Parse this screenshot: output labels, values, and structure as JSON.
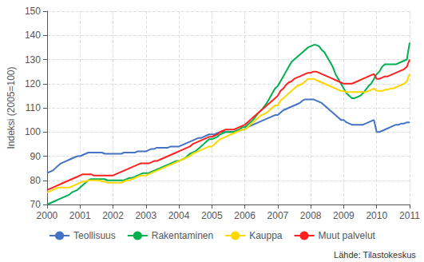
{
  "chart_data": {
    "type": "line",
    "ylabel": "Indeksi (2005=100)",
    "annotation": "Lähde: Tilastokeskus",
    "xlim": [
      2000,
      2011
    ],
    "xticks": [
      2000,
      2001,
      2002,
      2003,
      2004,
      2005,
      2006,
      2007,
      2008,
      2009,
      2010,
      2011
    ],
    "ylim": [
      70,
      150
    ],
    "yticks": [
      70,
      80,
      90,
      100,
      110,
      120,
      130,
      140,
      150
    ],
    "grid": true,
    "legend": "bottom",
    "x": [
      2000.0,
      2000.083,
      2000.167,
      2000.25,
      2000.333,
      2000.417,
      2000.5,
      2000.583,
      2000.667,
      2000.75,
      2000.833,
      2000.917,
      2001.0,
      2001.083,
      2001.167,
      2001.25,
      2001.333,
      2001.417,
      2001.5,
      2001.583,
      2001.667,
      2001.75,
      2001.833,
      2001.917,
      2002.0,
      2002.083,
      2002.167,
      2002.25,
      2002.333,
      2002.417,
      2002.5,
      2002.583,
      2002.667,
      2002.75,
      2002.833,
      2002.917,
      2003.0,
      2003.083,
      2003.167,
      2003.25,
      2003.333,
      2003.417,
      2003.5,
      2003.583,
      2003.667,
      2003.75,
      2003.833,
      2003.917,
      2004.0,
      2004.083,
      2004.167,
      2004.25,
      2004.333,
      2004.417,
      2004.5,
      2004.583,
      2004.667,
      2004.75,
      2004.833,
      2004.917,
      2005.0,
      2005.083,
      2005.167,
      2005.25,
      2005.333,
      2005.417,
      2005.5,
      2005.583,
      2005.667,
      2005.75,
      2005.833,
      2005.917,
      2006.0,
      2006.083,
      2006.167,
      2006.25,
      2006.333,
      2006.417,
      2006.5,
      2006.583,
      2006.667,
      2006.75,
      2006.833,
      2006.917,
      2007.0,
      2007.083,
      2007.167,
      2007.25,
      2007.333,
      2007.417,
      2007.5,
      2007.583,
      2007.667,
      2007.75,
      2007.833,
      2007.917,
      2008.0,
      2008.083,
      2008.167,
      2008.25,
      2008.333,
      2008.417,
      2008.5,
      2008.583,
      2008.667,
      2008.75,
      2008.833,
      2008.917,
      2009.0,
      2009.083,
      2009.167,
      2009.25,
      2009.333,
      2009.417,
      2009.5,
      2009.583,
      2009.667,
      2009.75,
      2009.833,
      2009.917,
      2010.0,
      2010.083,
      2010.167,
      2010.25,
      2010.333,
      2010.417,
      2010.5,
      2010.583,
      2010.667,
      2010.75,
      2010.833,
      2010.917,
      2011.0
    ],
    "series": [
      {
        "name": "Teollisuus",
        "color": "#4472c4",
        "values": [
          83,
          83.5,
          84,
          85,
          86,
          87,
          87.5,
          88,
          88.5,
          89,
          89.5,
          90,
          90,
          90.5,
          91,
          91.5,
          91.5,
          91.5,
          91.5,
          91.5,
          91.5,
          91,
          91,
          91,
          91,
          91,
          91,
          91,
          91.5,
          91.5,
          91.5,
          91.5,
          91.5,
          92,
          92,
          92,
          92,
          92.5,
          93,
          93,
          93.5,
          93.5,
          93.5,
          93.5,
          93.5,
          94,
          94,
          94,
          94,
          94.5,
          95,
          95.5,
          96,
          96.5,
          97,
          97.5,
          97.5,
          98,
          98.5,
          99,
          99,
          99,
          99.5,
          100,
          100,
          100,
          100,
          100,
          100,
          100.5,
          101,
          101,
          101,
          102,
          102.5,
          103,
          103.5,
          104,
          104.5,
          105,
          105.5,
          106,
          106.5,
          107,
          107,
          108,
          109,
          109.5,
          110,
          110.5,
          111,
          111.5,
          112,
          113,
          113.5,
          113.5,
          113.5,
          113.5,
          113,
          112.5,
          112,
          111,
          110,
          109,
          108,
          107,
          106,
          105,
          105,
          104,
          103.5,
          103,
          103,
          103,
          103,
          103,
          103.5,
          104,
          104.5,
          105,
          100,
          100,
          100.5,
          101,
          101.5,
          102,
          102.5,
          103,
          103,
          103.5,
          103.5,
          104,
          104
        ]
      },
      {
        "name": "Rakentaminen",
        "color": "#00b050",
        "values": [
          70,
          70.5,
          71,
          71.5,
          72,
          72.5,
          73,
          73.5,
          74,
          75,
          75.5,
          76,
          77,
          78,
          79,
          80,
          80.5,
          80.5,
          80.5,
          80.5,
          80.5,
          80.5,
          80,
          80,
          80,
          80,
          80,
          80,
          80,
          80.5,
          81,
          81,
          81.5,
          82,
          82.5,
          83,
          83,
          83,
          83.5,
          84,
          84.5,
          85,
          85.5,
          86,
          86.5,
          87,
          87.5,
          88,
          88,
          88.5,
          89,
          90,
          91,
          91.5,
          92,
          93,
          94,
          95,
          96,
          97,
          97,
          97.5,
          98,
          99,
          99.5,
          100,
          100,
          100,
          100,
          100.5,
          101,
          102,
          102,
          103,
          104,
          105,
          106.5,
          108,
          109,
          110.5,
          112,
          114,
          116,
          118,
          119,
          121,
          123,
          125,
          127,
          129,
          130,
          131,
          132,
          133,
          134,
          135,
          135.5,
          136,
          136,
          135.5,
          134,
          133,
          131,
          129,
          127,
          124,
          122,
          120,
          118,
          116,
          115,
          114,
          114,
          114.5,
          115,
          116,
          117.5,
          119,
          120,
          122,
          124,
          125,
          127,
          128,
          128,
          128,
          128,
          128,
          128.5,
          129,
          129.5,
          130,
          137
        ]
      },
      {
        "name": "Kauppa",
        "color": "#ffd700",
        "values": [
          75,
          75.5,
          76,
          76.5,
          77,
          77,
          77,
          77,
          77,
          77.5,
          78,
          78.5,
          79,
          79.5,
          79.5,
          80,
          80,
          80,
          80,
          80,
          79.5,
          79.5,
          79,
          79,
          79,
          79,
          79,
          79,
          79.5,
          80,
          80,
          80.5,
          81,
          81.5,
          82,
          82,
          82,
          82.5,
          83,
          83.5,
          84,
          84.5,
          85,
          85.5,
          86,
          86.5,
          87,
          87.5,
          88,
          88.5,
          89,
          89.5,
          90,
          91,
          91.5,
          92,
          92.5,
          93,
          93.5,
          94,
          94,
          95,
          96,
          97,
          97.5,
          98,
          98.5,
          99,
          99.5,
          100,
          100.5,
          101,
          101,
          102,
          103,
          104,
          105,
          106,
          107,
          107.5,
          108,
          109,
          110,
          111,
          111,
          113,
          114,
          115,
          116,
          117,
          118,
          119,
          119.5,
          120,
          121,
          122,
          122,
          122,
          121.5,
          121,
          120.5,
          120,
          119.5,
          119,
          118.5,
          118,
          117.5,
          117,
          117,
          116.5,
          116.5,
          116.5,
          116.5,
          116.5,
          116.5,
          116.5,
          116.5,
          117,
          117.5,
          118,
          117,
          117,
          117,
          117.5,
          117.5,
          118,
          118,
          118.5,
          119,
          119.5,
          120,
          121,
          124
        ]
      },
      {
        "name": "Muut palvelut",
        "color": "#ff2020",
        "values": [
          76,
          76.5,
          77,
          77.5,
          78,
          78.5,
          79,
          79.5,
          80,
          80.5,
          81,
          81.5,
          82,
          82.5,
          82.5,
          82.5,
          82.5,
          82,
          82,
          82,
          82,
          82,
          82,
          82,
          82,
          82.5,
          83,
          83.5,
          84,
          84.5,
          85,
          85.5,
          86,
          86.5,
          87,
          87,
          87,
          87,
          87.5,
          88,
          88,
          88.5,
          89,
          89.5,
          90,
          90.5,
          91,
          91.5,
          92,
          92.5,
          93,
          93.5,
          94,
          95,
          95.5,
          96,
          96.5,
          97,
          97.5,
          98,
          98,
          98.5,
          99,
          100,
          100.5,
          101,
          101,
          101,
          101,
          101.5,
          102,
          102.5,
          103,
          104,
          105,
          106,
          107,
          108,
          109,
          110,
          111,
          112,
          113,
          114,
          115,
          117,
          118,
          119.5,
          120.5,
          121,
          122,
          122.5,
          123,
          123.5,
          124,
          124.5,
          124.5,
          125,
          125,
          124.5,
          124,
          123.5,
          123,
          122.5,
          122,
          121.5,
          121,
          120.5,
          120,
          120,
          120,
          120,
          120.5,
          121,
          121.5,
          122,
          122.5,
          123,
          123.5,
          124,
          122,
          122,
          122.5,
          123,
          123,
          123.5,
          124,
          124.5,
          125,
          125.5,
          126,
          127,
          130
        ]
      }
    ]
  }
}
